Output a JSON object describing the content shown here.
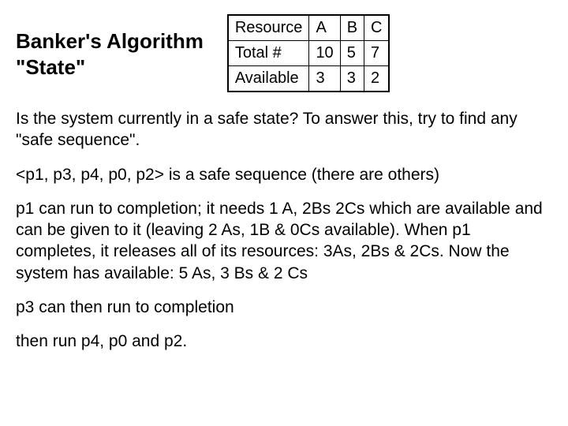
{
  "title_line1": "Banker's Algorithm",
  "title_line2": "\"State\"",
  "table": {
    "rows": [
      {
        "label": "Resource",
        "a": "A",
        "b": "B",
        "c": "C"
      },
      {
        "label": "Total #",
        "a": "10",
        "b": "5",
        "c": "7"
      },
      {
        "label": "Available",
        "a": "3",
        "b": "3",
        "c": "2"
      }
    ],
    "border_color": "#000000",
    "font_size": 20
  },
  "paragraphs": {
    "p1": "Is the system currently in a safe state?  To answer this, try to find any \"safe sequence\".",
    "p2": "<p1, p3, p4, p0, p2> is a safe sequence (there are others)",
    "p3": "p1 can run to completion; it needs 1 A, 2Bs 2Cs which are available and can be given to it (leaving 2 As, 1B & 0Cs available).  When p1 completes, it releases all of its resources: 3As, 2Bs & 2Cs.  Now the system has available: 5 As, 3 Bs & 2 Cs",
    "p4": "p3 can then run to completion",
    "p5": "then run p4, p0 and p2."
  },
  "colors": {
    "background": "#ffffff",
    "text": "#000000"
  },
  "typography": {
    "title_fontsize": 26,
    "title_weight": "bold",
    "body_fontsize": 21,
    "font_family": "Arial"
  }
}
